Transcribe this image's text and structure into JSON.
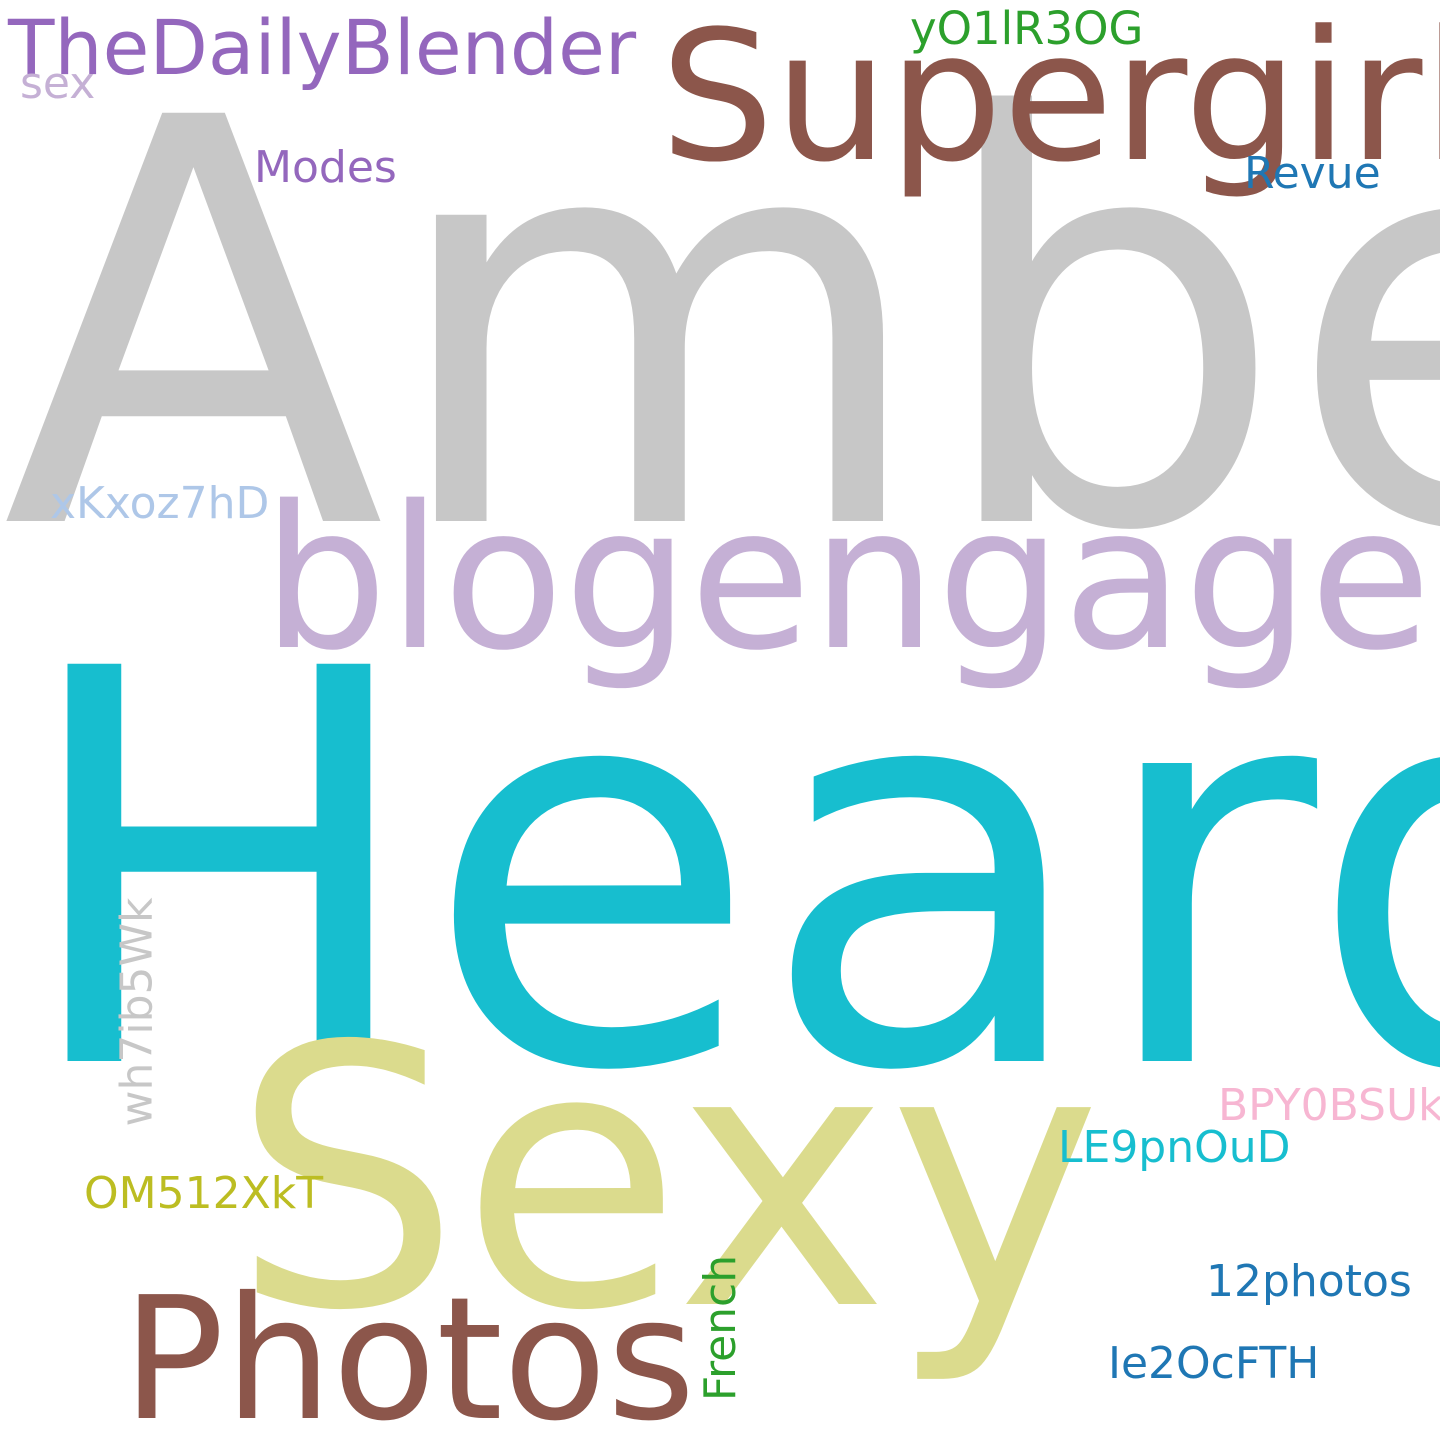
{
  "words": [
    {
      "key": "amber",
      "text": "Amber",
      "color": "#c7c7c7"
    },
    {
      "key": "heard",
      "text": "Heard",
      "color": "#17becf"
    },
    {
      "key": "sexy",
      "text": "Sexy",
      "color": "#dbdb8d"
    },
    {
      "key": "supergirl",
      "text": "Supergirl",
      "color": "#8c564b"
    },
    {
      "key": "blogengage",
      "text": "blogengage",
      "color": "#c5b0d5"
    },
    {
      "key": "photos",
      "text": "Photos",
      "color": "#8c564b"
    },
    {
      "key": "thedailyblender",
      "text": "TheDailyBlender",
      "color": "#9467bd"
    },
    {
      "key": "y01lr30g",
      "text": "yO1lR3OG",
      "color": "#2ca02c"
    },
    {
      "key": "sex",
      "text": "sex",
      "color": "#c5b0d5"
    },
    {
      "key": "modes",
      "text": "Modes",
      "color": "#9467bd"
    },
    {
      "key": "revue",
      "text": "Revue",
      "color": "#1f77b4"
    },
    {
      "key": "xkxoz7hd",
      "text": "xKxoz7hD",
      "color": "#aec7e8"
    },
    {
      "key": "wh7ib5wk",
      "text": "wh7ib5Wk",
      "color": "#c7c7c7"
    },
    {
      "key": "bpy0bsuk",
      "text": "BPY0BSUk",
      "color": "#f7b6d2"
    },
    {
      "key": "le9pn0ud",
      "text": "LE9pnOuD",
      "color": "#17becf"
    },
    {
      "key": "om512xkt",
      "text": "OM512XkT",
      "color": "#bcbd22"
    },
    {
      "key": "french",
      "text": "French",
      "color": "#2ca02c"
    },
    {
      "key": "12photos",
      "text": "12photos",
      "color": "#1f77b4"
    },
    {
      "key": "ie2ocfth",
      "text": "Ie2OcFTH",
      "color": "#1f77b4"
    }
  ]
}
